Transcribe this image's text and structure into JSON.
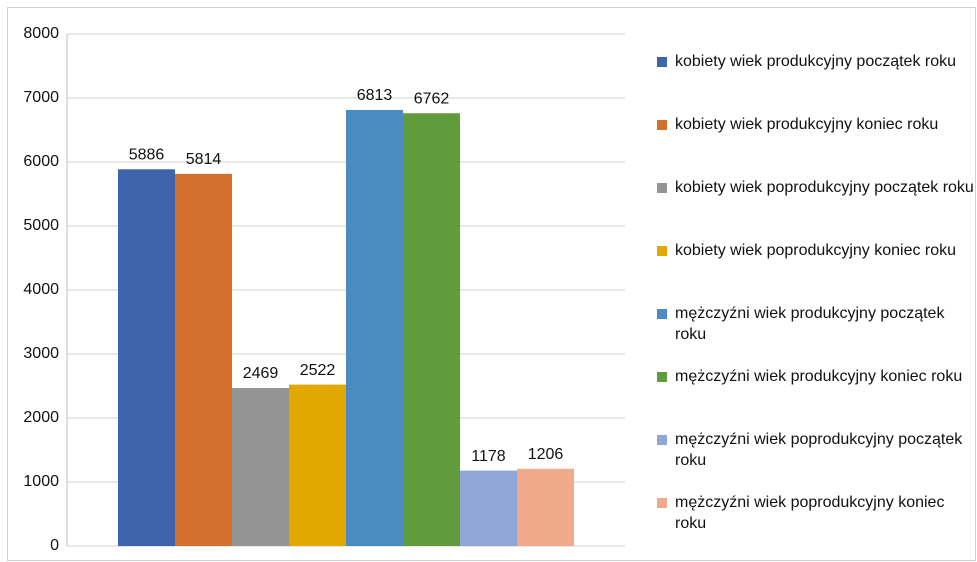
{
  "chart_data": {
    "type": "bar",
    "categories": [
      null
    ],
    "series": [
      {
        "name": "kobiety wiek produkcyjny początek roku",
        "color": "#3e64ae",
        "values": [
          5886
        ]
      },
      {
        "name": "kobiety wiek produkcyjny koniec roku",
        "color": "#d4702c",
        "values": [
          5814
        ]
      },
      {
        "name": "kobiety wiek poprodukcyjny początek roku",
        "color": "#949494",
        "values": [
          2469
        ]
      },
      {
        "name": "kobiety wiek poprodukcyjny koniec roku",
        "color": "#e1a900",
        "values": [
          2522
        ]
      },
      {
        "name": "mężczyźni wiek produkcyjny początek roku",
        "color": "#4a8bc2",
        "values": [
          6813
        ]
      },
      {
        "name": "mężczyźni wiek produkcyjny koniec roku",
        "color": "#609c3b",
        "values": [
          6762
        ]
      },
      {
        "name": "mężczyźni wiek poprodukcyjny początek roku",
        "color": "#8fa6d6",
        "values": [
          1178
        ]
      },
      {
        "name": "mężczyźni wiek poprodukcyjny koniec roku",
        "color": "#f0a98a",
        "values": [
          1206
        ]
      }
    ],
    "ylim": [
      0,
      8000
    ],
    "yticks": [
      0,
      1000,
      2000,
      3000,
      4000,
      5000,
      6000,
      7000,
      8000
    ],
    "grid": true,
    "legend": "right"
  }
}
